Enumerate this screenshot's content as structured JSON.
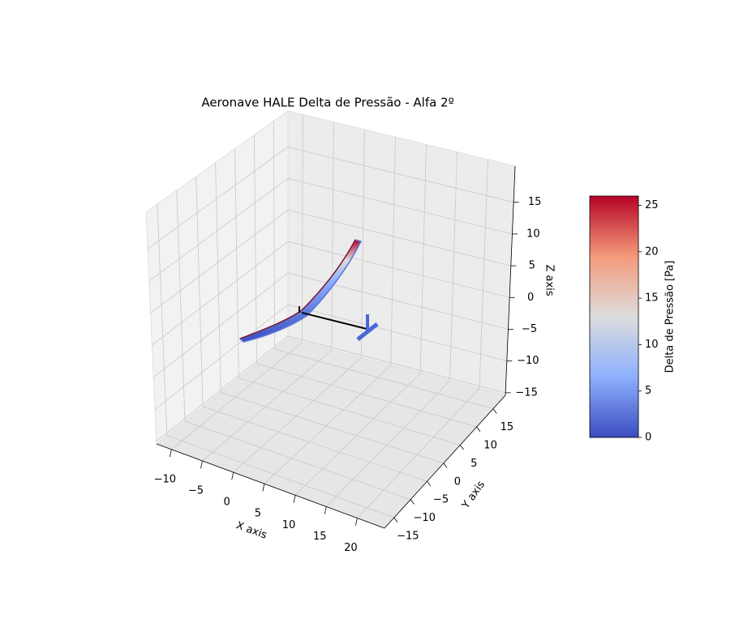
{
  "chart_data": {
    "type": "surface3d",
    "title": "Aeronave HALE Delta de Pressão - Alfa 2º",
    "xlabel": "X axis",
    "ylabel": "Y axis",
    "zlabel": "Z axis",
    "xlim": [
      -12.4,
      24.4
    ],
    "ylim": [
      -17.9,
      18.7
    ],
    "zlim": [
      -15.4,
      20.7
    ],
    "xticks": [
      {
        "value": -10,
        "label": "−10"
      },
      {
        "value": -5,
        "label": "−5"
      },
      0,
      5,
      10,
      15,
      20
    ],
    "yticks": [
      {
        "value": -15,
        "label": "−15"
      },
      {
        "value": -10,
        "label": "−10"
      },
      {
        "value": -5,
        "label": "−5"
      },
      0,
      5,
      10,
      15
    ],
    "zticks": [
      {
        "value": -15,
        "label": "−15"
      },
      {
        "value": -10,
        "label": "−10"
      },
      {
        "value": -5,
        "label": "−5"
      },
      0,
      5,
      10,
      15
    ],
    "grid": true,
    "colorbar": {
      "label": "Delta de Pressão [Pa]",
      "clim": [
        0,
        26
      ],
      "ticks": [
        0,
        5,
        10,
        15,
        20,
        25
      ],
      "colors": [
        "#3b4cc0",
        "#8db0fe",
        "#dddddd",
        "#f49a7b",
        "#b40426"
      ]
    }
  }
}
